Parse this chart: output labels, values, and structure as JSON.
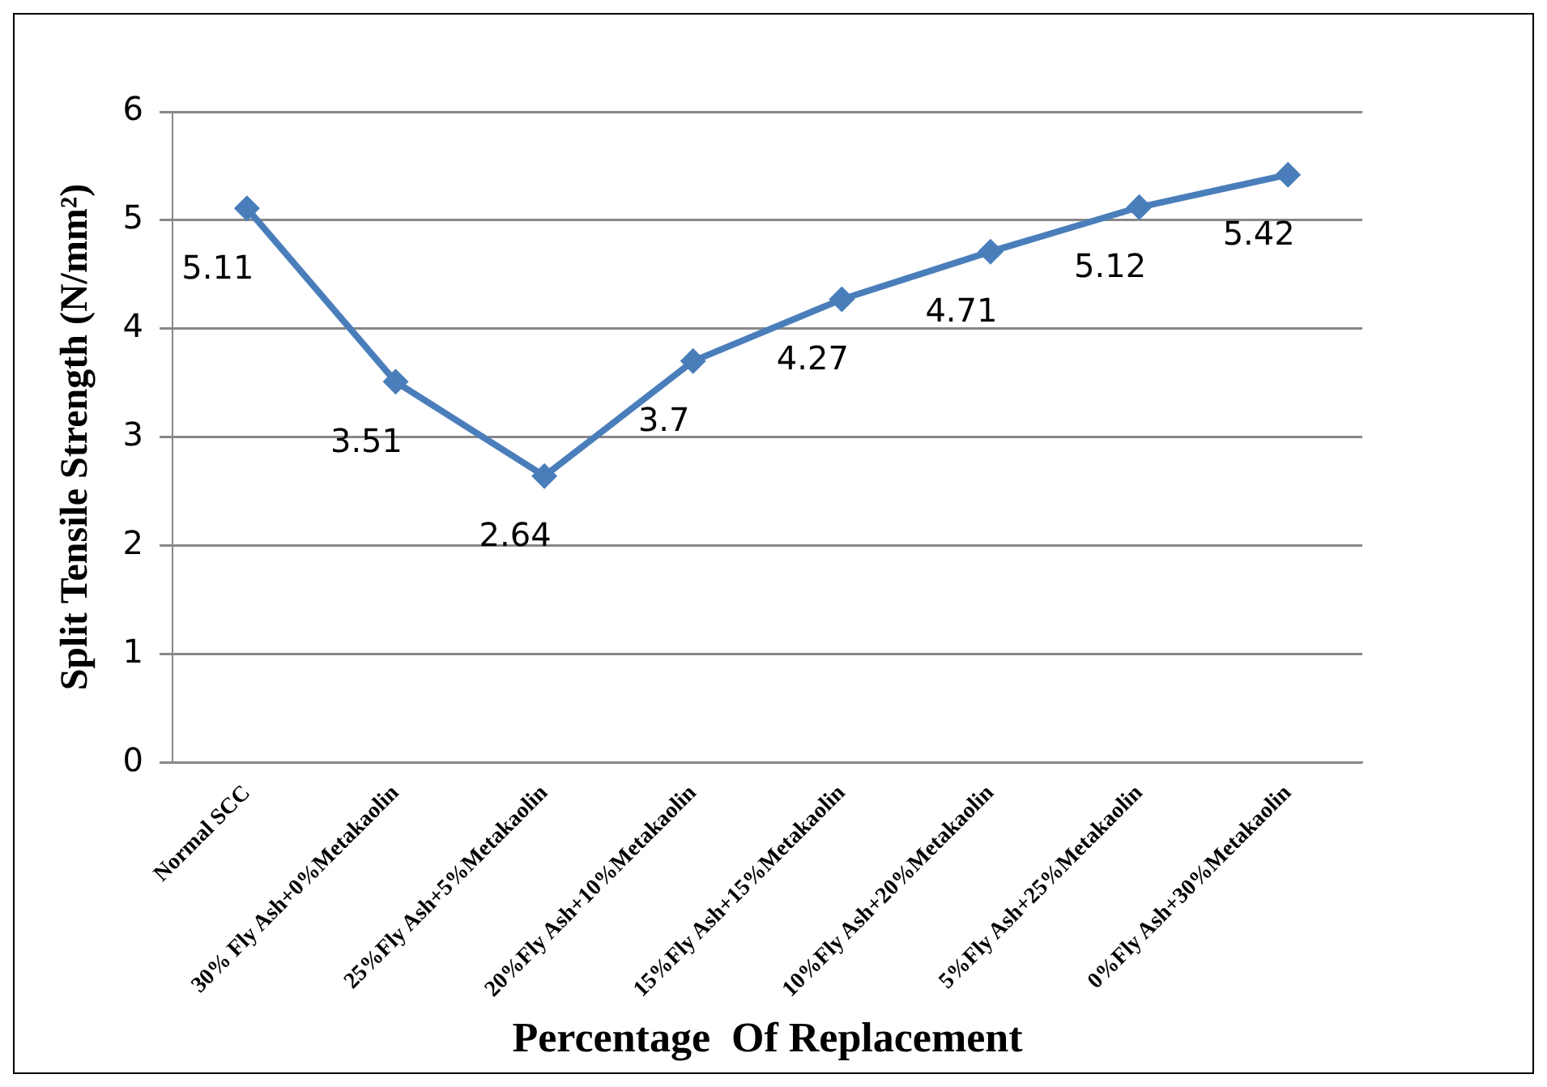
{
  "chart_data": {
    "type": "line",
    "xlabel": "Percentage  Of Replacement",
    "ylabel": "Split Tensile Strength (N/mm²)",
    "categories": [
      "Normal SCC",
      "30% Fly Ash+0%Metakaolin",
      "25%Fly Ash+5%Metakaolin",
      "20%Fly Ash+10%Metakaolin",
      "15%Fly Ash+15%Metakaolin",
      "10%Fly Ash+20%Metakaolin",
      "5%Fly Ash+25%Metakaolin",
      "0%Fly Ash+30%Metakaolin"
    ],
    "series": [
      {
        "color": "#4a7ebb",
        "values": [
          5.11,
          3.51,
          2.64,
          3.7,
          4.27,
          4.71,
          5.12,
          5.42
        ]
      }
    ],
    "ylim": [
      0,
      6
    ],
    "yticks": [
      0,
      1,
      2,
      3,
      4,
      5,
      6
    ],
    "grid": "y",
    "marker": "diamond",
    "line_style": "solid",
    "data_labels": true,
    "legend": false
  }
}
